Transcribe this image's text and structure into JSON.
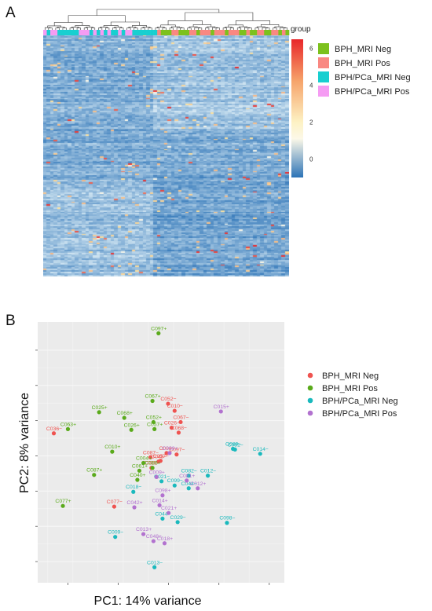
{
  "panels": {
    "a": "A",
    "b": "B"
  },
  "colors": {
    "bph_mri_neg": "#7cc11d",
    "bph_mri_pos": "#f98882",
    "bph_pca_mri_neg": "#18cfd0",
    "bph_pca_mri_pos": "#f59cf3",
    "pca_neg_point": "#ef5350",
    "pca_pos_point": "#5aaa1b",
    "pca_pcaneg_point": "#1ab9bd",
    "pca_pcapos_point": "#b272cf",
    "heat_high": "#e8262a",
    "heat_mid": "#fcf8e8",
    "heat_low": "#2c73b7"
  },
  "chart_data": [
    {
      "type": "heatmap",
      "annotation_title": "group",
      "legend": [
        {
          "label": "BPH_MRI Neg",
          "color_key": "bph_mri_neg"
        },
        {
          "label": "BPH_MRI Pos",
          "color_key": "bph_mri_pos"
        },
        {
          "label": "BPH/PCa_MRI Neg",
          "color_key": "bph_pca_mri_neg"
        },
        {
          "label": "BPH/PCa_MRI Pos",
          "color_key": "bph_pca_mri_pos"
        }
      ],
      "colorbar": {
        "min": -1,
        "max": 6.5,
        "ticks": [
          6,
          4,
          2,
          0
        ]
      },
      "group_annotation": [
        3,
        2,
        3,
        3,
        2,
        2,
        2,
        2,
        2,
        2,
        3,
        3,
        3,
        2,
        3,
        2,
        3,
        2,
        3,
        2,
        2,
        3,
        2,
        3,
        3,
        2,
        2,
        2,
        2,
        2,
        2,
        2,
        1,
        0,
        0,
        0,
        1,
        1,
        0,
        0,
        0,
        1,
        1,
        0,
        1,
        1,
        1,
        0,
        1,
        1,
        1,
        0,
        1,
        1,
        1,
        0,
        0,
        1,
        0,
        0,
        1,
        1,
        0,
        0,
        1,
        1,
        0,
        1,
        0
      ],
      "rows": 165,
      "cluster_split_column": 31
    },
    {
      "type": "scatter",
      "xlabel": "PC1: 14% variance",
      "ylabel": "PC2: 8% variance",
      "legend": [
        "BPH_MRI Neg",
        "BPH_MRI Pos",
        "BPH/PCa_MRI Neg",
        "BPH/PCa_MRI Pos"
      ],
      "series": [
        {
          "name": "BPH_MRI Neg",
          "color_key": "pca_neg_point",
          "points": [
            {
              "label": "C052−",
              "x": -0.05,
              "y": 7.4
            },
            {
              "label": "C010−",
              "x": 0.6,
              "y": 6.4
            },
            {
              "label": "C067−",
              "x": 1.2,
              "y": 4.8
            },
            {
              "label": "C026−",
              "x": 0.3,
              "y": 4.0
            },
            {
              "label": "C068−",
              "x": 1.0,
              "y": 3.3
            },
            {
              "label": "C036−",
              "x": -11.4,
              "y": 3.2
            },
            {
              "label": "C098−",
              "x": -0.2,
              "y": 0.4
            },
            {
              "label": "C097−",
              "x": 0.8,
              "y": 0.2
            },
            {
              "label": "C087−",
              "x": -1.8,
              "y": -0.2
            },
            {
              "label": "C057−",
              "x": -0.8,
              "y": -0.7
            },
            {
              "label": "C035−",
              "x": -1.7,
              "y": -1.7
            },
            {
              "label": "C048−",
              "x": -1.0,
              "y": -0.8
            },
            {
              "label": "C077−",
              "x": -5.4,
              "y": -7.2
            }
          ]
        },
        {
          "name": "BPH_MRI Pos",
          "color_key": "pca_pos_point",
          "points": [
            {
              "label": "C097+",
              "x": -1.0,
              "y": 17.4
            },
            {
              "label": "C067+",
              "x": -1.6,
              "y": 7.8
            },
            {
              "label": "C025+",
              "x": -6.9,
              "y": 6.2
            },
            {
              "label": "C068+",
              "x": -4.4,
              "y": 5.4
            },
            {
              "label": "C052+",
              "x": -1.5,
              "y": 4.8
            },
            {
              "label": "C057+",
              "x": -1.4,
              "y": 3.8
            },
            {
              "label": "C026+",
              "x": -3.7,
              "y": 3.7
            },
            {
              "label": "C063+",
              "x": -10.0,
              "y": 3.8
            },
            {
              "label": "C010+",
              "x": -5.6,
              "y": 0.6
            },
            {
              "label": "C004+",
              "x": -2.5,
              "y": -1.0
            },
            {
              "label": "C061+",
              "x": -2.9,
              "y": -2.1
            },
            {
              "label": "C086+",
              "x": -1.6,
              "y": -1.7
            },
            {
              "label": "C087+",
              "x": -7.4,
              "y": -2.7
            },
            {
              "label": "C040+",
              "x": -3.1,
              "y": -3.4
            },
            {
              "label": "C077+",
              "x": -10.5,
              "y": -7.1
            }
          ]
        },
        {
          "name": "BPH/PCa_MRI Neg",
          "color_key": "pca_pcaneg_point",
          "points": [
            {
              "label": "C089−",
              "x": 6.4,
              "y": 1.0
            },
            {
              "label": "C081−",
              "x": 6.6,
              "y": 0.9
            },
            {
              "label": "C014−",
              "x": 9.1,
              "y": 0.3
            },
            {
              "label": "C082−",
              "x": 2.0,
              "y": -2.8
            },
            {
              "label": "C012−",
              "x": 3.9,
              "y": -2.8
            },
            {
              "label": "C021−",
              "x": -0.7,
              "y": -3.6
            },
            {
              "label": "C099−",
              "x": 0.6,
              "y": -4.2
            },
            {
              "label": "C044−",
              "x": 2.0,
              "y": -4.6
            },
            {
              "label": "C018−",
              "x": -3.5,
              "y": -5.1
            },
            {
              "label": "C044−",
              "x": -0.6,
              "y": -8.9
            },
            {
              "label": "C029−",
              "x": 0.9,
              "y": -9.4
            },
            {
              "label": "C098−",
              "x": 5.8,
              "y": -9.5
            },
            {
              "label": "C009−",
              "x": -5.3,
              "y": -11.5
            },
            {
              "label": "C013−",
              "x": -1.4,
              "y": -15.8
            }
          ]
        },
        {
          "name": "BPH/PCa_MRI Pos",
          "color_key": "pca_pcapos_point",
          "points": [
            {
              "label": "C015+",
              "x": 5.2,
              "y": 6.3
            },
            {
              "label": "C099+",
              "x": 0.1,
              "y": 0.4
            },
            {
              "label": "C009+",
              "x": -1.2,
              "y": -3.0
            },
            {
              "label": "C081+",
              "x": 1.8,
              "y": -3.5
            },
            {
              "label": "C012+",
              "x": 2.9,
              "y": -4.6
            },
            {
              "label": "C098+",
              "x": -0.6,
              "y": -5.6
            },
            {
              "label": "C042+",
              "x": -3.4,
              "y": -7.3
            },
            {
              "label": "C014+",
              "x": -0.9,
              "y": -7.0
            },
            {
              "label": "C021+",
              "x": 0.0,
              "y": -8.1
            },
            {
              "label": "C013+",
              "x": -2.5,
              "y": -11.1
            },
            {
              "label": "C048+",
              "x": -1.5,
              "y": -12.1
            },
            {
              "label": "C018+",
              "x": -0.4,
              "y": -12.4
            }
          ]
        }
      ]
    }
  ]
}
